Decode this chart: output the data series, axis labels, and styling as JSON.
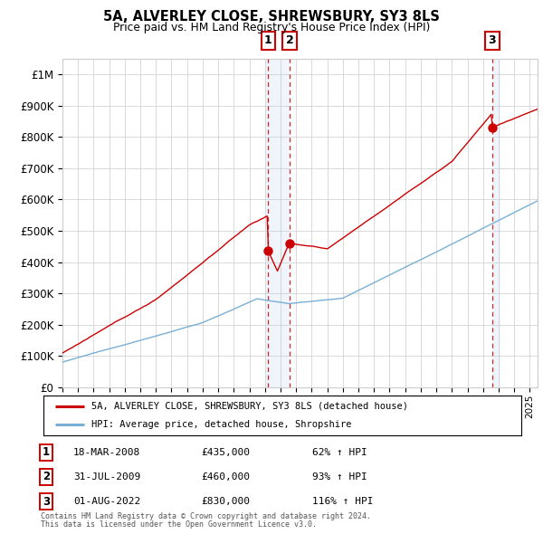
{
  "title1": "5A, ALVERLEY CLOSE, SHREWSBURY, SY3 8LS",
  "title2": "Price paid vs. HM Land Registry's House Price Index (HPI)",
  "ytick_values": [
    0,
    100000,
    200000,
    300000,
    400000,
    500000,
    600000,
    700000,
    800000,
    900000,
    1000000
  ],
  "ylim": [
    0,
    1050000
  ],
  "xlim_start": 1995.0,
  "xlim_end": 2025.5,
  "hpi_color": "#7aafd4",
  "price_color": "#cc0000",
  "sale1_date": 2008.21,
  "sale2_date": 2009.58,
  "sale3_date": 2022.58,
  "sale1_price": 435000,
  "sale2_price": 460000,
  "sale3_price": 830000,
  "legend_label1": "5A, ALVERLEY CLOSE, SHREWSBURY, SY3 8LS (detached house)",
  "legend_label2": "HPI: Average price, detached house, Shropshire",
  "table_rows": [
    {
      "num": "1",
      "date": "18-MAR-2008",
      "price": "£435,000",
      "hpi": "62% ↑ HPI"
    },
    {
      "num": "2",
      "date": "31-JUL-2009",
      "price": "£460,000",
      "hpi": "93% ↑ HPI"
    },
    {
      "num": "3",
      "date": "01-AUG-2022",
      "price": "£830,000",
      "hpi": "116% ↑ HPI"
    }
  ],
  "footnote1": "Contains HM Land Registry data © Crown copyright and database right 2024.",
  "footnote2": "This data is licensed under the Open Government Licence v3.0.",
  "background_color": "#ffffff",
  "grid_color": "#cccccc",
  "span_color": "#ddeeff"
}
